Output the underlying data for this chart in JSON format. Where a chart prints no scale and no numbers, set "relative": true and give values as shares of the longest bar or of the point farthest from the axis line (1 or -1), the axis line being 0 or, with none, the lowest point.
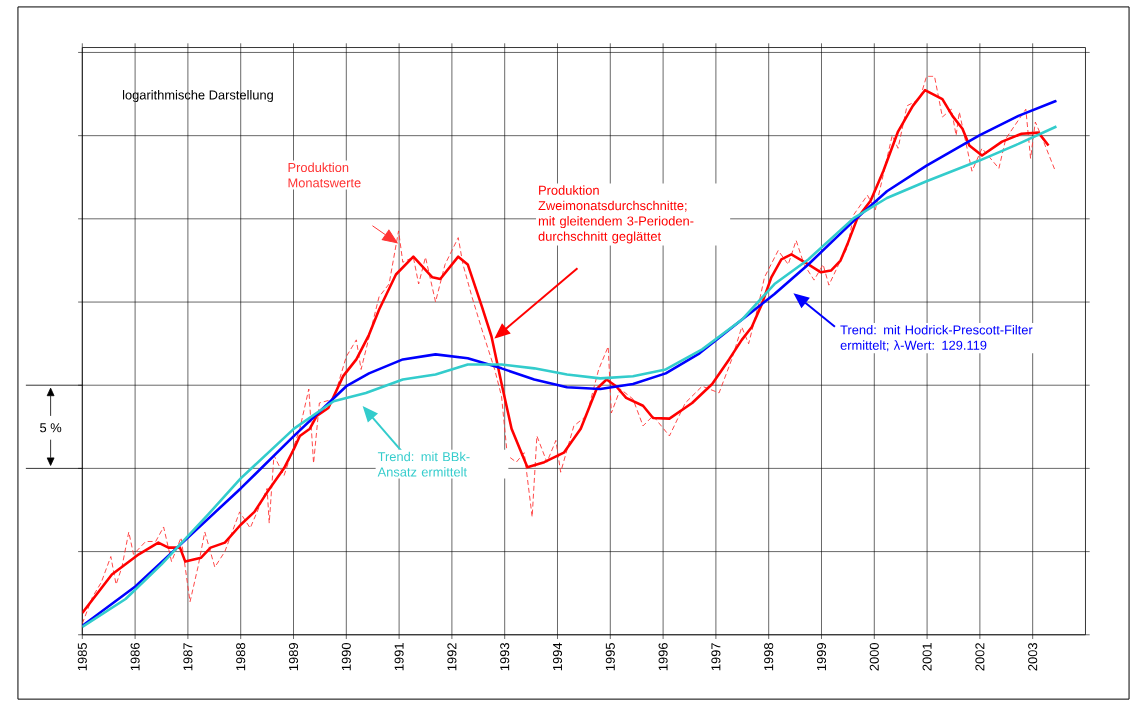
{
  "chart_data": {
    "type": "line",
    "relative": true,
    "grid": true,
    "xlim": [
      1985,
      2004
    ],
    "xticks": [
      1985,
      1986,
      1987,
      1988,
      1989,
      1990,
      1991,
      1992,
      1993,
      1994,
      1995,
      1996,
      1997,
      1998,
      1999,
      2000,
      2001,
      2002,
      2003
    ],
    "annotations": [
      "logarithmische Darstellung",
      "5 %"
    ],
    "series": [
      {
        "name": "Produktion Monatswerte",
        "color": "#ff3333",
        "line_style": "dashed",
        "x": [
          1985.0,
          1985.19,
          1985.36,
          1985.54,
          1985.64,
          1985.75,
          1985.88,
          1985.97,
          1986.2,
          1986.39,
          1986.54,
          1986.69,
          1986.87,
          1987.04,
          1987.19,
          1987.32,
          1987.51,
          1987.7,
          1987.98,
          1988.18,
          1988.5,
          1988.54,
          1988.63,
          1988.82,
          1989.12,
          1989.29,
          1989.38,
          1989.49,
          1989.76,
          1990.0,
          1990.19,
          1990.28,
          1990.62,
          1990.81,
          1990.99,
          1991.07,
          1991.27,
          1991.37,
          1991.5,
          1991.69,
          1991.87,
          1992.12,
          1992.21,
          1992.38,
          1992.57,
          1992.81,
          1992.94,
          1993.05,
          1993.22,
          1993.37,
          1993.52,
          1993.61,
          1993.8,
          1993.97,
          1994.06,
          1994.31,
          1994.55,
          1994.78,
          1994.96,
          1995.02,
          1995.19,
          1995.43,
          1995.62,
          1995.81,
          1996.12,
          1996.42,
          1996.74,
          1997.06,
          1997.3,
          1997.49,
          1997.62,
          1997.81,
          1997.92,
          1998.18,
          1998.37,
          1998.52,
          1998.67,
          1998.86,
          1999.03,
          1999.14,
          1999.36,
          1999.49,
          1999.61,
          1999.87,
          2000.02,
          2000.24,
          2000.34,
          2000.45,
          2000.62,
          2000.86,
          2000.99,
          2001.14,
          2001.29,
          2001.46,
          2001.55,
          2001.61,
          2001.85,
          2002.04,
          2002.36,
          2002.49,
          2002.87,
          2002.96,
          2003.05,
          2003.16,
          2003.43
        ],
        "values": [
          0.02,
          0.067,
          0.094,
          0.14,
          0.09,
          0.121,
          0.184,
          0.144,
          0.167,
          0.167,
          0.193,
          0.131,
          0.174,
          0.059,
          0.121,
          0.184,
          0.121,
          0.149,
          0.22,
          0.191,
          0.262,
          0.2,
          0.321,
          0.285,
          0.369,
          0.44,
          0.307,
          0.415,
          0.422,
          0.498,
          0.528,
          0.475,
          0.605,
          0.628,
          0.723,
          0.667,
          0.676,
          0.628,
          0.676,
          0.596,
          0.663,
          0.711,
          0.663,
          0.605,
          0.546,
          0.475,
          0.427,
          0.321,
          0.309,
          0.326,
          0.211,
          0.356,
          0.309,
          0.348,
          0.291,
          0.374,
          0.392,
          0.475,
          0.516,
          0.397,
          0.44,
          0.422,
          0.374,
          0.392,
          0.356,
          0.415,
          0.445,
          0.433,
          0.493,
          0.551,
          0.521,
          0.592,
          0.64,
          0.688,
          0.663,
          0.706,
          0.663,
          0.635,
          0.663,
          0.626,
          0.67,
          0.693,
          0.752,
          0.787,
          0.761,
          0.853,
          0.894,
          0.871,
          0.947,
          0.959,
          1.0,
          1.0,
          0.927,
          0.941,
          0.894,
          0.936,
          0.83,
          0.871,
          0.835,
          0.888,
          0.941,
          0.853,
          0.918,
          0.894,
          0.83
        ]
      },
      {
        "name": "Produktion Zweimonatsdurchschnitte; mit gleitendem 3-Perioden-durchschnitt geglättet",
        "color": "#ff0000",
        "x": [
          1985.0,
          1985.56,
          1986.07,
          1986.44,
          1986.63,
          1986.85,
          1986.95,
          1987.25,
          1987.43,
          1987.7,
          1988.0,
          1988.26,
          1988.5,
          1988.82,
          1989.01,
          1989.12,
          1989.31,
          1989.44,
          1989.66,
          1989.94,
          1990.19,
          1990.43,
          1990.62,
          1990.94,
          1991.27,
          1991.63,
          1991.78,
          1992.12,
          1992.3,
          1992.57,
          1992.75,
          1992.94,
          1993.13,
          1993.43,
          1993.75,
          1994.12,
          1994.44,
          1994.74,
          1994.93,
          1995.11,
          1995.3,
          1995.62,
          1995.81,
          1996.12,
          1996.55,
          1996.93,
          1997.25,
          1997.49,
          1997.68,
          1997.87,
          1998.05,
          1998.24,
          1998.43,
          1998.75,
          1998.99,
          1999.18,
          1999.36,
          1999.49,
          1999.68,
          1999.93,
          2000.17,
          2000.45,
          2000.73,
          2000.96,
          2001.29,
          2001.48,
          2001.67,
          2001.8,
          2002.04,
          2002.42,
          2002.79,
          2003.11,
          2003.3
        ],
        "values": [
          0.039,
          0.108,
          0.144,
          0.165,
          0.156,
          0.156,
          0.131,
          0.138,
          0.156,
          0.165,
          0.197,
          0.22,
          0.255,
          0.298,
          0.333,
          0.356,
          0.369,
          0.392,
          0.406,
          0.463,
          0.493,
          0.537,
          0.582,
          0.645,
          0.677,
          0.64,
          0.637,
          0.677,
          0.663,
          0.587,
          0.534,
          0.45,
          0.369,
          0.3,
          0.309,
          0.326,
          0.369,
          0.44,
          0.457,
          0.445,
          0.424,
          0.41,
          0.388,
          0.387,
          0.415,
          0.449,
          0.493,
          0.528,
          0.551,
          0.592,
          0.64,
          0.672,
          0.681,
          0.663,
          0.649,
          0.652,
          0.67,
          0.699,
          0.746,
          0.777,
          0.83,
          0.901,
          0.947,
          0.975,
          0.959,
          0.929,
          0.906,
          0.876,
          0.858,
          0.883,
          0.897,
          0.899,
          0.876
        ]
      },
      {
        "name": "Trend: mit Hodrick-Prescott-Filter ermittelt; λ-Wert: 129.119",
        "color": "#0000ff",
        "x": [
          1985.0,
          1986.01,
          1987.0,
          1988.0,
          1989.01,
          1990.0,
          1990.43,
          1991.07,
          1991.69,
          1992.3,
          1992.94,
          1993.56,
          1994.18,
          1994.81,
          1995.43,
          1996.05,
          1996.69,
          1997.49,
          1998.11,
          1998.75,
          1999.61,
          2000.24,
          2000.99,
          2001.99,
          2002.73,
          2003.45
        ],
        "values": [
          0.016,
          0.087,
          0.174,
          0.262,
          0.356,
          0.445,
          0.468,
          0.493,
          0.502,
          0.495,
          0.477,
          0.457,
          0.443,
          0.44,
          0.449,
          0.468,
          0.504,
          0.564,
          0.61,
          0.663,
          0.741,
          0.794,
          0.84,
          0.894,
          0.929,
          0.956
        ]
      },
      {
        "name": "Trend: mit BBk-Ansatz ermittelt",
        "color": "#33cccc",
        "x": [
          1985.0,
          1985.82,
          1986.5,
          1987.38,
          1988.0,
          1989.01,
          1989.76,
          1990.37,
          1991.07,
          1991.69,
          1992.3,
          1992.94,
          1993.56,
          1994.18,
          1994.81,
          1995.43,
          1996.05,
          1996.74,
          1997.49,
          1998.11,
          1998.75,
          1999.61,
          2000.24,
          2000.99,
          2001.99,
          2002.73,
          2003.45
        ],
        "values": [
          0.014,
          0.064,
          0.126,
          0.215,
          0.28,
          0.369,
          0.418,
          0.433,
          0.457,
          0.466,
          0.484,
          0.484,
          0.477,
          0.466,
          0.459,
          0.463,
          0.475,
          0.511,
          0.564,
          0.628,
          0.672,
          0.746,
          0.782,
          0.812,
          0.849,
          0.879,
          0.91
        ]
      }
    ]
  }
}
